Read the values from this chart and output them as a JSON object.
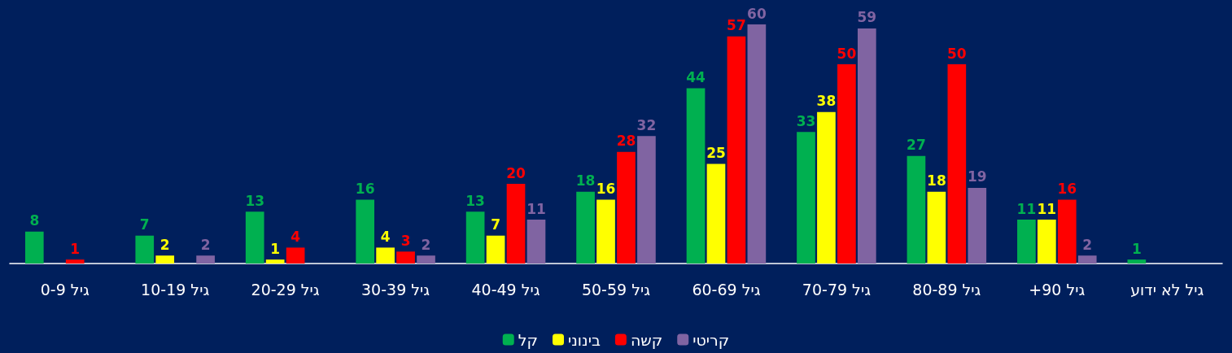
{
  "chart_data": {
    "type": "bar",
    "categories": [
      "גיל 0-9",
      "גיל 10-19",
      "גיל 20-29",
      "גיל 30-39",
      "גיל 40-49",
      "גיל 50-59",
      "גיל 60-69",
      "גיל 70-79",
      "גיל 80-89",
      "גיל 90+",
      "גיל לא ידוע"
    ],
    "series": [
      {
        "name": "קל",
        "color": "#00b050",
        "values": [
          8,
          7,
          13,
          16,
          13,
          18,
          44,
          33,
          27,
          11,
          1
        ]
      },
      {
        "name": "בינוני",
        "color": "#ffff00",
        "values": [
          null,
          2,
          1,
          4,
          7,
          16,
          25,
          38,
          18,
          11,
          null
        ]
      },
      {
        "name": "קשה",
        "color": "#ff0000",
        "values": [
          1,
          null,
          4,
          3,
          20,
          28,
          57,
          50,
          50,
          16,
          null
        ]
      },
      {
        "name": "קריטי",
        "color": "#8064a2",
        "values": [
          null,
          2,
          null,
          2,
          11,
          32,
          60,
          59,
          19,
          2,
          null
        ]
      }
    ],
    "data_labels": true,
    "legend": "bottom",
    "grid": false
  }
}
